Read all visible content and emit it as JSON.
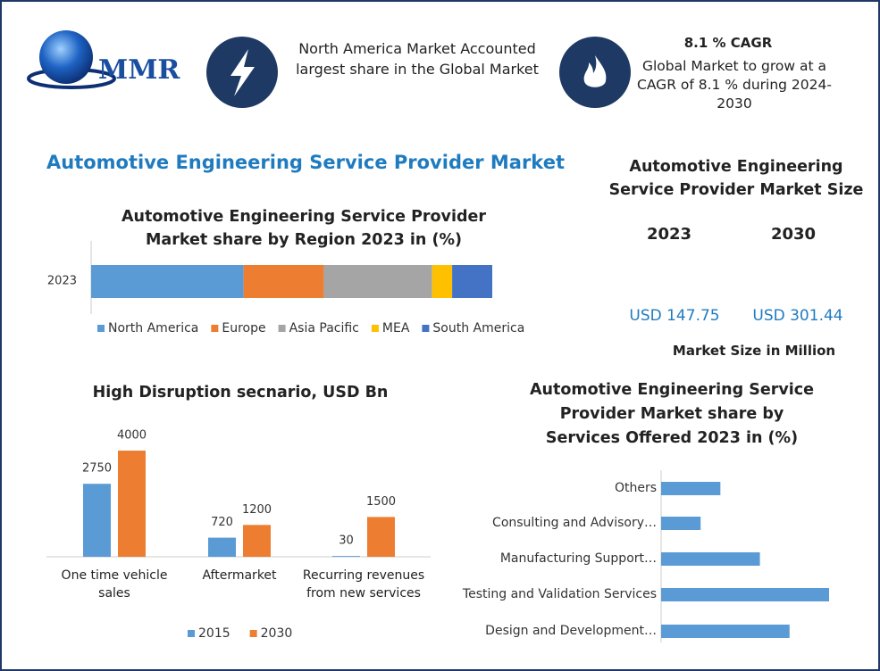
{
  "logo": "MMR",
  "highlights": [
    {
      "text": "North America Market Accounted largest share in the Global Market"
    },
    {
      "title": "8.1 % CAGR",
      "text": "Global Market to grow at a CAGR of 8.1 % during 2024-2030"
    }
  ],
  "main_title": "Automotive Engineering Service Provider Market",
  "market_size": {
    "title": "Automotive Engineering Service Provider Market Size",
    "years": [
      "2023",
      "2030"
    ],
    "values": [
      "USD 147.75",
      "USD 301.44"
    ],
    "note": "Market Size in Million"
  },
  "chart_data": [
    {
      "type": "stacked-bar",
      "title": "Automotive Engineering Service Provider Market share by Region 2023 in (%)",
      "categories": [
        "2023"
      ],
      "series": [
        {
          "name": "North America",
          "color": "#5b9bd5",
          "values": [
            38
          ]
        },
        {
          "name": "Europe",
          "color": "#ed7d31",
          "values": [
            20
          ]
        },
        {
          "name": "Asia Pacific",
          "color": "#a5a5a5",
          "values": [
            27
          ]
        },
        {
          "name": "MEA",
          "color": "#ffc000",
          "values": [
            5
          ]
        },
        {
          "name": "South America",
          "color": "#4472c4",
          "values": [
            10
          ]
        }
      ]
    },
    {
      "type": "grouped-bar",
      "title": "High Disruption secnario, USD Bn",
      "categories": [
        "One time vehicle sales",
        "Aftermarket",
        "Recurring revenues from new services"
      ],
      "series": [
        {
          "name": "2015",
          "color": "#5b9bd5",
          "values": [
            2750,
            720,
            30
          ]
        },
        {
          "name": "2030",
          "color": "#ed7d31",
          "values": [
            4000,
            1200,
            1500
          ]
        }
      ]
    },
    {
      "type": "hbar",
      "title": "Automotive Engineering Service Provider Market share by Services Offered 2023 in (%)",
      "categories": [
        "Others",
        "Consulting and Advisory…",
        "Manufacturing Support…",
        "Testing and Validation Services",
        "Design and Development…"
      ],
      "values": [
        12,
        8,
        20,
        34,
        26
      ],
      "color": "#5b9bd5"
    }
  ]
}
